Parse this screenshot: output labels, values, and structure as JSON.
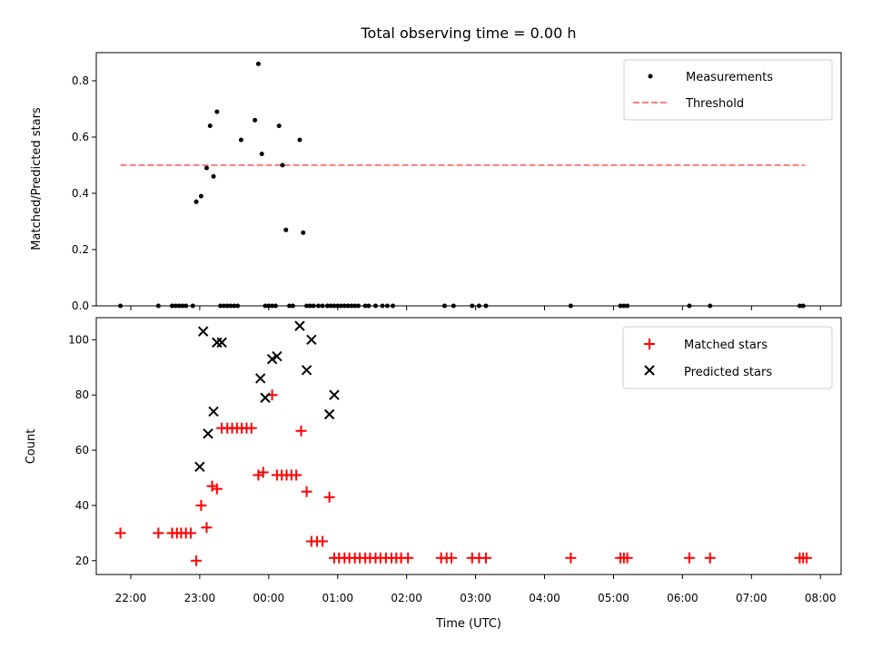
{
  "chart_data": [
    {
      "type": "scatter",
      "title": "Total observing time = 0.00 h",
      "ylabel": "Matched/Predicted stars",
      "ylim": [
        0,
        0.9
      ],
      "yticks": [
        "0.0",
        "0.2",
        "0.4",
        "0.6",
        "0.8"
      ],
      "legend_position": "top-right",
      "series": [
        {
          "name": "Measurements",
          "color": "#000000",
          "x": [
            -2.15,
            -1.6,
            -1.4,
            -1.35,
            -1.3,
            -1.25,
            -1.2,
            -1.1,
            -1.05,
            -0.98,
            -0.9,
            -0.85,
            -0.8,
            -0.75,
            -0.7,
            -0.65,
            -0.6,
            -0.55,
            -0.5,
            -0.45,
            -0.4,
            -0.2,
            -0.15,
            -0.1,
            -0.05,
            0.0,
            0.05,
            0.1,
            0.15,
            0.2,
            0.25,
            0.3,
            0.35,
            0.45,
            0.5,
            0.55,
            0.6,
            0.65,
            0.72,
            0.78,
            0.85,
            0.9,
            0.95,
            1.0,
            1.05,
            1.1,
            1.15,
            1.2,
            1.25,
            1.3,
            1.4,
            1.45,
            1.55,
            1.65,
            1.72,
            1.8,
            2.55,
            2.68,
            2.95,
            3.05,
            3.15,
            4.38,
            5.1,
            5.15,
            5.2,
            6.1,
            6.4,
            7.7,
            7.75
          ],
          "y": [
            0,
            0,
            0,
            0,
            0,
            0,
            0,
            0,
            0.37,
            0.39,
            0.49,
            0.64,
            0.46,
            0.69,
            0,
            0,
            0,
            0,
            0,
            0,
            0.59,
            0.66,
            0.86,
            0.54,
            0,
            0,
            0,
            0,
            0.64,
            0.5,
            0.27,
            0,
            0,
            0.59,
            0.26,
            0,
            0,
            0,
            0,
            0,
            0,
            0,
            0,
            0,
            0,
            0,
            0,
            0,
            0,
            0,
            0,
            0,
            0,
            0,
            0,
            0,
            0,
            0,
            0,
            0,
            0,
            0,
            0,
            0,
            0,
            0,
            0,
            0,
            0
          ]
        },
        {
          "name": "Threshold",
          "color": "#ff7f7f",
          "x": [
            -2.15,
            7.78
          ],
          "y": [
            0.5,
            0.5
          ]
        }
      ]
    },
    {
      "type": "scatter",
      "xlabel": "Time (UTC)",
      "ylabel": "Count",
      "ylim": [
        15,
        108
      ],
      "yticks": [
        "20",
        "40",
        "60",
        "80",
        "100"
      ],
      "xlim": [
        -2.5,
        8.3
      ],
      "xtick_values": [
        -2,
        -1,
        0,
        1,
        2,
        3,
        4,
        5,
        6,
        7,
        8
      ],
      "xticks": [
        "22:00",
        "23:00",
        "00:00",
        "01:00",
        "02:00",
        "03:00",
        "04:00",
        "05:00",
        "06:00",
        "07:00",
        "08:00"
      ],
      "legend_position": "top-right",
      "series": [
        {
          "name": "Matched stars",
          "color": "#ff0000",
          "x": [
            -2.15,
            -1.6,
            -1.4,
            -1.33,
            -1.27,
            -1.2,
            -1.13,
            -1.05,
            -0.98,
            -0.9,
            -0.82,
            -0.75,
            -0.68,
            -0.6,
            -0.53,
            -0.46,
            -0.39,
            -0.32,
            -0.25,
            -0.15,
            -0.08,
            0.05,
            0.12,
            0.19,
            0.26,
            0.33,
            0.4,
            0.47,
            0.55,
            0.62,
            0.7,
            0.78,
            0.88,
            0.95,
            1.02,
            1.1,
            1.17,
            1.25,
            1.32,
            1.4,
            1.47,
            1.55,
            1.62,
            1.7,
            1.78,
            1.85,
            1.92,
            2.02,
            2.5,
            2.58,
            2.65,
            2.95,
            3.05,
            3.15,
            4.38,
            5.1,
            5.15,
            5.2,
            6.1,
            6.4,
            7.7,
            7.75,
            7.8
          ],
          "y": [
            30,
            30,
            30,
            30,
            30,
            30,
            30,
            20,
            40,
            32,
            47,
            46,
            68,
            68,
            68,
            68,
            68,
            68,
            68,
            51,
            52,
            80,
            51,
            51,
            51,
            51,
            51,
            67,
            45,
            27,
            27,
            27,
            43,
            21,
            21,
            21,
            21,
            21,
            21,
            21,
            21,
            21,
            21,
            21,
            21,
            21,
            21,
            21,
            21,
            21,
            21,
            21,
            21,
            21,
            21,
            21,
            21,
            21,
            21,
            21,
            21,
            21,
            21
          ]
        },
        {
          "name": "Predicted stars",
          "color": "#000000",
          "x": [
            -1.0,
            -0.95,
            -0.88,
            -0.8,
            -0.75,
            -0.68,
            -0.12,
            -0.05,
            0.05,
            0.12,
            0.45,
            0.55,
            0.62,
            0.88,
            0.95
          ],
          "y": [
            54,
            103,
            66,
            74,
            99,
            99,
            86,
            79,
            93,
            94,
            105,
            89,
            100,
            73,
            80
          ]
        }
      ]
    }
  ]
}
